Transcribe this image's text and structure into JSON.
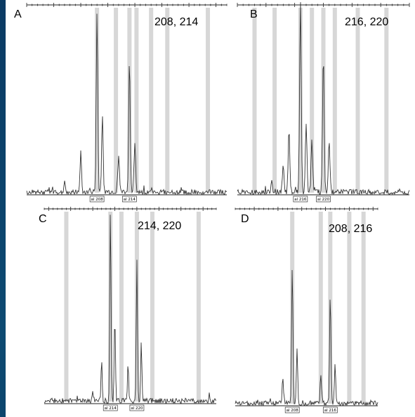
{
  "chart_data": [
    {
      "type": "line",
      "panel": "A",
      "label": "208, 214",
      "bin_tags": [
        "al 208",
        "al 214"
      ],
      "called_alleles": [
        208,
        214
      ],
      "peaks": [
        {
          "x": 202,
          "height": 0.06
        },
        {
          "x": 205,
          "height": 0.22
        },
        {
          "x": 208,
          "height": 1.0
        },
        {
          "x": 209,
          "height": 0.43
        },
        {
          "x": 212,
          "height": 0.2
        },
        {
          "x": 214,
          "height": 0.73
        },
        {
          "x": 215,
          "height": 0.28
        }
      ],
      "bins": [
        208,
        211.5,
        214,
        215.3,
        218,
        221,
        228.5
      ]
    },
    {
      "type": "line",
      "panel": "B",
      "label": "216, 220",
      "bin_tags": [
        "al 216",
        "al 220"
      ],
      "called_alleles": [
        216,
        220
      ],
      "peaks": [
        {
          "x": 211,
          "height": 0.06
        },
        {
          "x": 213,
          "height": 0.15
        },
        {
          "x": 214,
          "height": 0.32
        },
        {
          "x": 216,
          "height": 1.0
        },
        {
          "x": 217,
          "height": 0.38
        },
        {
          "x": 218,
          "height": 0.28
        },
        {
          "x": 220,
          "height": 0.72
        },
        {
          "x": 221,
          "height": 0.28
        }
      ],
      "bins": [
        208,
        211.5,
        216,
        218,
        220,
        222,
        226,
        231
      ]
    },
    {
      "type": "line",
      "panel": "C",
      "label": "214, 220",
      "bin_tags": [
        "al 214",
        "al 220"
      ],
      "called_alleles": [
        214,
        220
      ],
      "peaks": [
        {
          "x": 210,
          "height": 0.05
        },
        {
          "x": 212,
          "height": 0.22
        },
        {
          "x": 214,
          "height": 1.0
        },
        {
          "x": 215,
          "height": 0.43
        },
        {
          "x": 218,
          "height": 0.2
        },
        {
          "x": 220,
          "height": 0.73
        },
        {
          "x": 221,
          "height": 0.28
        }
      ],
      "bins": [
        204,
        214,
        216.5,
        220,
        223.5,
        234
      ]
    },
    {
      "type": "line",
      "panel": "D",
      "label": "208, 216",
      "bin_tags": [
        "al 208",
        "al 216"
      ],
      "called_alleles": [
        208,
        216
      ],
      "peaks": [
        {
          "x": 206,
          "height": 0.14
        },
        {
          "x": 208,
          "height": 0.82
        },
        {
          "x": 209,
          "height": 0.32
        },
        {
          "x": 214,
          "height": 0.18
        },
        {
          "x": 216,
          "height": 0.65
        },
        {
          "x": 217,
          "height": 0.22
        }
      ],
      "bins": [
        208,
        214,
        216,
        220,
        223
      ]
    }
  ]
}
